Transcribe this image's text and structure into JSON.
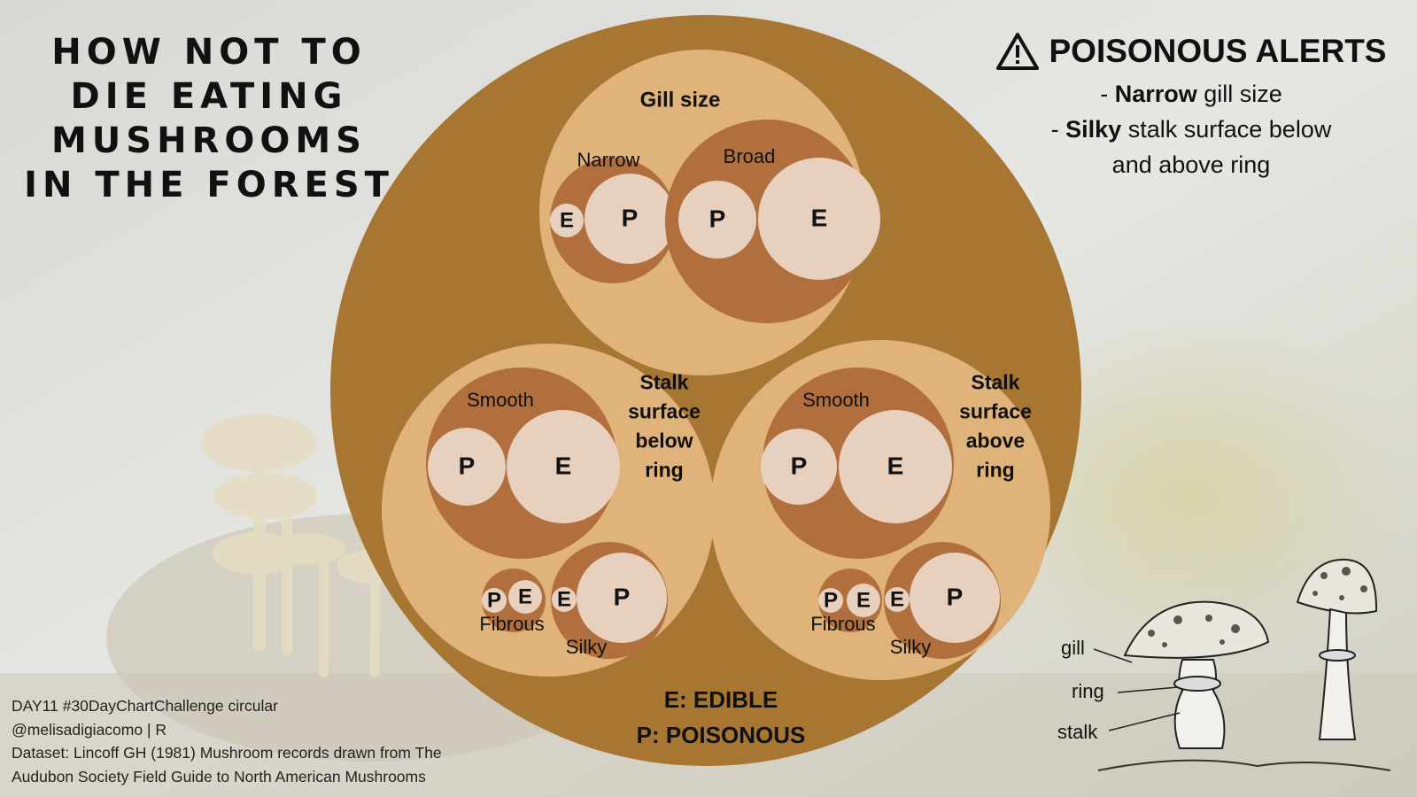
{
  "title": "HOW NOT TO DIE EATING MUSHROOMS IN THE FOREST",
  "alerts": {
    "heading": "POISONOUS ALERTS",
    "items": [
      {
        "bold": "Narrow",
        "text": " gill size",
        "prefix": "- "
      },
      {
        "bold": "Silky",
        "text": " stalk surface below",
        "prefix": "- "
      },
      {
        "bold": "",
        "text": "and above ring",
        "prefix": ""
      }
    ]
  },
  "credits": [
    "DAY11 #30DayChartChallenge circular",
    "@melisadigiacomo | R",
    "Dataset: Lincoff GH (1981) Mushroom records drawn from The",
    "Audubon Society Field Guide to North American Mushrooms"
  ],
  "anatomy_labels": {
    "gill": "gill",
    "ring": "ring",
    "stalk": "stalk"
  },
  "colors": {
    "outer": "#a87633",
    "group": "#dfb37a",
    "category": "#b06f3c",
    "leaf": "#e8d0bf",
    "text": "#111111"
  },
  "chart_data": {
    "type": "circle-packing",
    "legend": [
      "E: EDIBLE",
      "P: POISONOUS"
    ],
    "groups": [
      {
        "name": "Gill size",
        "categories": [
          {
            "name": "Narrow",
            "leaves": [
              {
                "label": "E"
              },
              {
                "label": "P"
              }
            ]
          },
          {
            "name": "Broad",
            "leaves": [
              {
                "label": "P"
              },
              {
                "label": "E"
              }
            ]
          }
        ]
      },
      {
        "name": "Stalk surface below ring",
        "name_lines": [
          "Stalk",
          "surface",
          "below",
          "ring"
        ],
        "categories": [
          {
            "name": "Smooth",
            "leaves": [
              {
                "label": "P"
              },
              {
                "label": "E"
              }
            ]
          },
          {
            "name": "Fibrous",
            "leaves": [
              {
                "label": "P"
              },
              {
                "label": "E"
              }
            ]
          },
          {
            "name": "Silky",
            "leaves": [
              {
                "label": "E"
              },
              {
                "label": "P"
              }
            ]
          }
        ]
      },
      {
        "name": "Stalk surface above ring",
        "name_lines": [
          "Stalk",
          "surface",
          "above",
          "ring"
        ],
        "categories": [
          {
            "name": "Smooth",
            "leaves": [
              {
                "label": "P"
              },
              {
                "label": "E"
              }
            ]
          },
          {
            "name": "Fibrous",
            "leaves": [
              {
                "label": "P"
              },
              {
                "label": "E"
              }
            ]
          },
          {
            "name": "Silky",
            "leaves": [
              {
                "label": "E"
              },
              {
                "label": "P"
              }
            ]
          }
        ]
      }
    ]
  }
}
